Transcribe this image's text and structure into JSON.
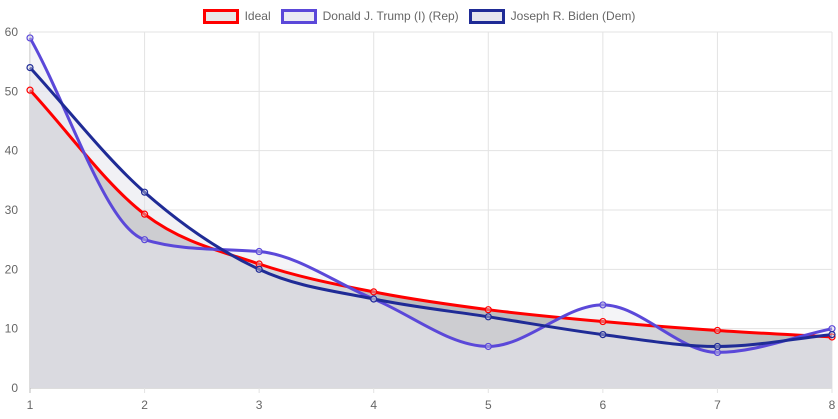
{
  "chart_data": {
    "type": "line",
    "x": [
      1,
      2,
      3,
      4,
      5,
      6,
      7,
      8
    ],
    "ylim": [
      0,
      60
    ],
    "y_ticks": [
      0,
      10,
      20,
      30,
      40,
      50,
      60
    ],
    "grid": true,
    "legend_position": "top",
    "series": [
      {
        "name": "Ideal",
        "color": "#ff0000",
        "fill": "#bdbdbd",
        "values": [
          50.2,
          29.3,
          20.9,
          16.2,
          13.2,
          11.2,
          9.7,
          8.6
        ]
      },
      {
        "name": "Donald J. Trump (I) (Rep)",
        "color": "#5b48d9",
        "fill": "rgba(235,235,240,0.55)",
        "values": [
          59,
          25,
          23,
          15,
          7,
          14,
          6,
          10
        ]
      },
      {
        "name": "Joseph R. Biden (Dem)",
        "color": "#1f2b96",
        "fill": "rgba(225,225,232,0.45)",
        "values": [
          54,
          33,
          20,
          15,
          12,
          9,
          7,
          9
        ]
      }
    ]
  }
}
